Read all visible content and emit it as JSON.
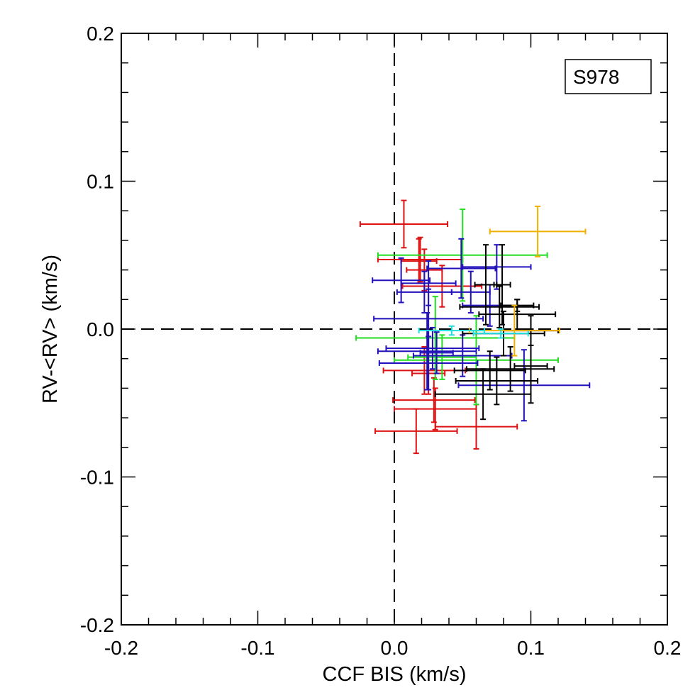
{
  "chart_data": {
    "type": "scatter",
    "title": "",
    "xlabel": "CCF BIS (km/s)",
    "ylabel": "RV-<RV> (km/s)",
    "xlim": [
      -0.2,
      0.2
    ],
    "ylim": [
      -0.2,
      0.2
    ],
    "x_ticks": [
      -0.2,
      -0.1,
      0.0,
      0.1,
      0.2
    ],
    "y_ticks": [
      -0.2,
      -0.1,
      0.0,
      0.1,
      0.2
    ],
    "x_tick_labels": [
      "-0.2",
      "-0.1",
      "0.0",
      "0.1",
      "0.2"
    ],
    "y_tick_labels": [
      "-0.2",
      "-0.1",
      "0.0",
      "0.1",
      "0.2"
    ],
    "reference_lines": {
      "x": 0.0,
      "y": 0.0,
      "style": "dashed"
    },
    "legend": {
      "label": "S978",
      "placement": "top-right"
    },
    "colors": {
      "red": "#dd1111",
      "green": "#22dd22",
      "blue": "#2211bb",
      "black": "#000000",
      "orange": "#f0b000",
      "cyan": "#22dddd"
    },
    "series": [
      {
        "name": "red",
        "color": "#dd1111",
        "points": [
          {
            "x": 0.007,
            "y": 0.071,
            "xerr": 0.032,
            "yerr": 0.016
          },
          {
            "x": 0.019,
            "y": 0.047,
            "xerr": 0.031,
            "yerr": 0.015
          },
          {
            "x": 0.018,
            "y": 0.046,
            "xerr": 0.013,
            "yerr": 0.015
          },
          {
            "x": 0.022,
            "y": 0.04,
            "xerr": 0.013,
            "yerr": 0.014
          },
          {
            "x": 0.035,
            "y": 0.029,
            "xerr": 0.029,
            "yerr": 0.014
          },
          {
            "x": 0.022,
            "y": -0.028,
            "xerr": 0.03,
            "yerr": 0.016
          },
          {
            "x": 0.025,
            "y": -0.03,
            "xerr": 0.012,
            "yerr": 0.014
          },
          {
            "x": 0.029,
            "y": -0.048,
            "xerr": 0.03,
            "yerr": 0.015
          },
          {
            "x": 0.03,
            "y": -0.054,
            "xerr": 0.03,
            "yerr": 0.014
          },
          {
            "x": 0.016,
            "y": -0.069,
            "xerr": 0.03,
            "yerr": 0.015
          },
          {
            "x": 0.06,
            "y": -0.066,
            "xerr": 0.03,
            "yerr": 0.015
          }
        ]
      },
      {
        "name": "green",
        "color": "#22dd22",
        "points": [
          {
            "x": 0.05,
            "y": 0.05,
            "xerr": 0.062,
            "yerr": 0.031
          },
          {
            "x": 0.03,
            "y": -0.006,
            "xerr": 0.058,
            "yerr": 0.028
          },
          {
            "x": 0.06,
            "y": -0.021,
            "xerr": 0.06,
            "yerr": 0.03
          },
          {
            "x": 0.035,
            "y": -0.019,
            "xerr": 0.025,
            "yerr": 0.015
          }
        ]
      },
      {
        "name": "blue",
        "color": "#2211bb",
        "points": [
          {
            "x": 0.049,
            "y": 0.041,
            "xerr": 0.025,
            "yerr": 0.02
          },
          {
            "x": 0.075,
            "y": 0.042,
            "xerr": 0.025,
            "yerr": 0.015
          },
          {
            "x": 0.005,
            "y": 0.033,
            "xerr": 0.021,
            "yerr": 0.015
          },
          {
            "x": 0.025,
            "y": 0.031,
            "xerr": 0.02,
            "yerr": 0.015
          },
          {
            "x": 0.022,
            "y": 0.025,
            "xerr": 0.02,
            "yerr": 0.014
          },
          {
            "x": 0.056,
            "y": 0.025,
            "xerr": 0.014,
            "yerr": 0.014
          },
          {
            "x": 0.07,
            "y": 0.016,
            "xerr": 0.02,
            "yerr": 0.014
          },
          {
            "x": 0.025,
            "y": 0.007,
            "xerr": 0.04,
            "yerr": 0.02
          },
          {
            "x": 0.024,
            "y": -0.015,
            "xerr": 0.036,
            "yerr": 0.026
          },
          {
            "x": 0.028,
            "y": -0.013,
            "xerr": 0.034,
            "yerr": 0.014
          },
          {
            "x": 0.025,
            "y": -0.023,
            "xerr": 0.036,
            "yerr": 0.018
          },
          {
            "x": 0.05,
            "y": -0.018,
            "xerr": 0.036,
            "yerr": 0.014
          },
          {
            "x": 0.095,
            "y": -0.038,
            "xerr": 0.048,
            "yerr": 0.024
          },
          {
            "x": 0.031,
            "y": -0.016,
            "xerr": 0.012,
            "yerr": 0.014
          }
        ]
      },
      {
        "name": "black",
        "color": "#000000",
        "points": [
          {
            "x": 0.067,
            "y": 0.03,
            "xerr": 0.008,
            "yerr": 0.027
          },
          {
            "x": 0.079,
            "y": 0.03,
            "xerr": 0.006,
            "yerr": 0.027
          },
          {
            "x": 0.077,
            "y": 0.015,
            "xerr": 0.029,
            "yerr": 0.014
          },
          {
            "x": 0.09,
            "y": 0.016,
            "xerr": 0.012,
            "yerr": 0.004
          },
          {
            "x": 0.09,
            "y": 0.01,
            "xerr": 0.028,
            "yerr": 0.01
          },
          {
            "x": 0.08,
            "y": -0.003,
            "xerr": 0.03,
            "yerr": 0.015
          },
          {
            "x": 0.085,
            "y": -0.027,
            "xerr": 0.032,
            "yerr": 0.015
          },
          {
            "x": 0.07,
            "y": -0.028,
            "xerr": 0.026,
            "yerr": 0.013
          },
          {
            "x": 0.075,
            "y": -0.035,
            "xerr": 0.03,
            "yerr": 0.016
          },
          {
            "x": 0.065,
            "y": -0.044,
            "xerr": 0.035,
            "yerr": 0.017
          },
          {
            "x": 0.1,
            "y": -0.025,
            "xerr": 0.012,
            "yerr": 0.025
          },
          {
            "x": 0.1,
            "y": -0.001,
            "xerr": 0.02,
            "yerr": 0.01
          }
        ]
      },
      {
        "name": "orange",
        "color": "#f0b000",
        "points": [
          {
            "x": 0.105,
            "y": 0.066,
            "xerr": 0.035,
            "yerr": 0.017
          },
          {
            "x": 0.088,
            "y": -0.001,
            "xerr": 0.033,
            "yerr": 0.017
          }
        ]
      },
      {
        "name": "cyan",
        "color": "#22dddd",
        "points": [
          {
            "x": 0.042,
            "y": -0.001,
            "xerr": 0.024,
            "yerr": 0.003
          },
          {
            "x": 0.078,
            "y": -0.003,
            "xerr": 0.02,
            "yerr": 0.003
          }
        ]
      }
    ]
  }
}
